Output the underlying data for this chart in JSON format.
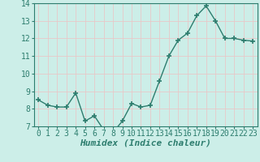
{
  "x": [
    0,
    1,
    2,
    3,
    4,
    5,
    6,
    7,
    8,
    9,
    10,
    11,
    12,
    13,
    14,
    15,
    16,
    17,
    18,
    19,
    20,
    21,
    22,
    23
  ],
  "y": [
    8.5,
    8.2,
    8.1,
    8.1,
    8.9,
    7.3,
    7.6,
    6.8,
    6.65,
    7.3,
    8.3,
    8.1,
    8.2,
    9.6,
    11.0,
    11.9,
    12.3,
    13.3,
    13.85,
    13.0,
    12.0,
    12.0,
    11.9,
    11.85
  ],
  "line_color": "#2d7d6e",
  "marker": "+",
  "marker_size": 4,
  "marker_lw": 1.2,
  "bg_color": "#cceee8",
  "grid_color": "#e8c8c8",
  "xlabel": "Humidex (Indice chaleur)",
  "xlabel_fontsize": 8,
  "ylim": [
    7,
    14
  ],
  "xlim": [
    -0.5,
    23.5
  ],
  "yticks": [
    7,
    8,
    9,
    10,
    11,
    12,
    13,
    14
  ],
  "xticks": [
    0,
    1,
    2,
    3,
    4,
    5,
    6,
    7,
    8,
    9,
    10,
    11,
    12,
    13,
    14,
    15,
    16,
    17,
    18,
    19,
    20,
    21,
    22,
    23
  ],
  "tick_fontsize": 7,
  "linewidth": 1.0,
  "spine_color": "#2d7d6e"
}
